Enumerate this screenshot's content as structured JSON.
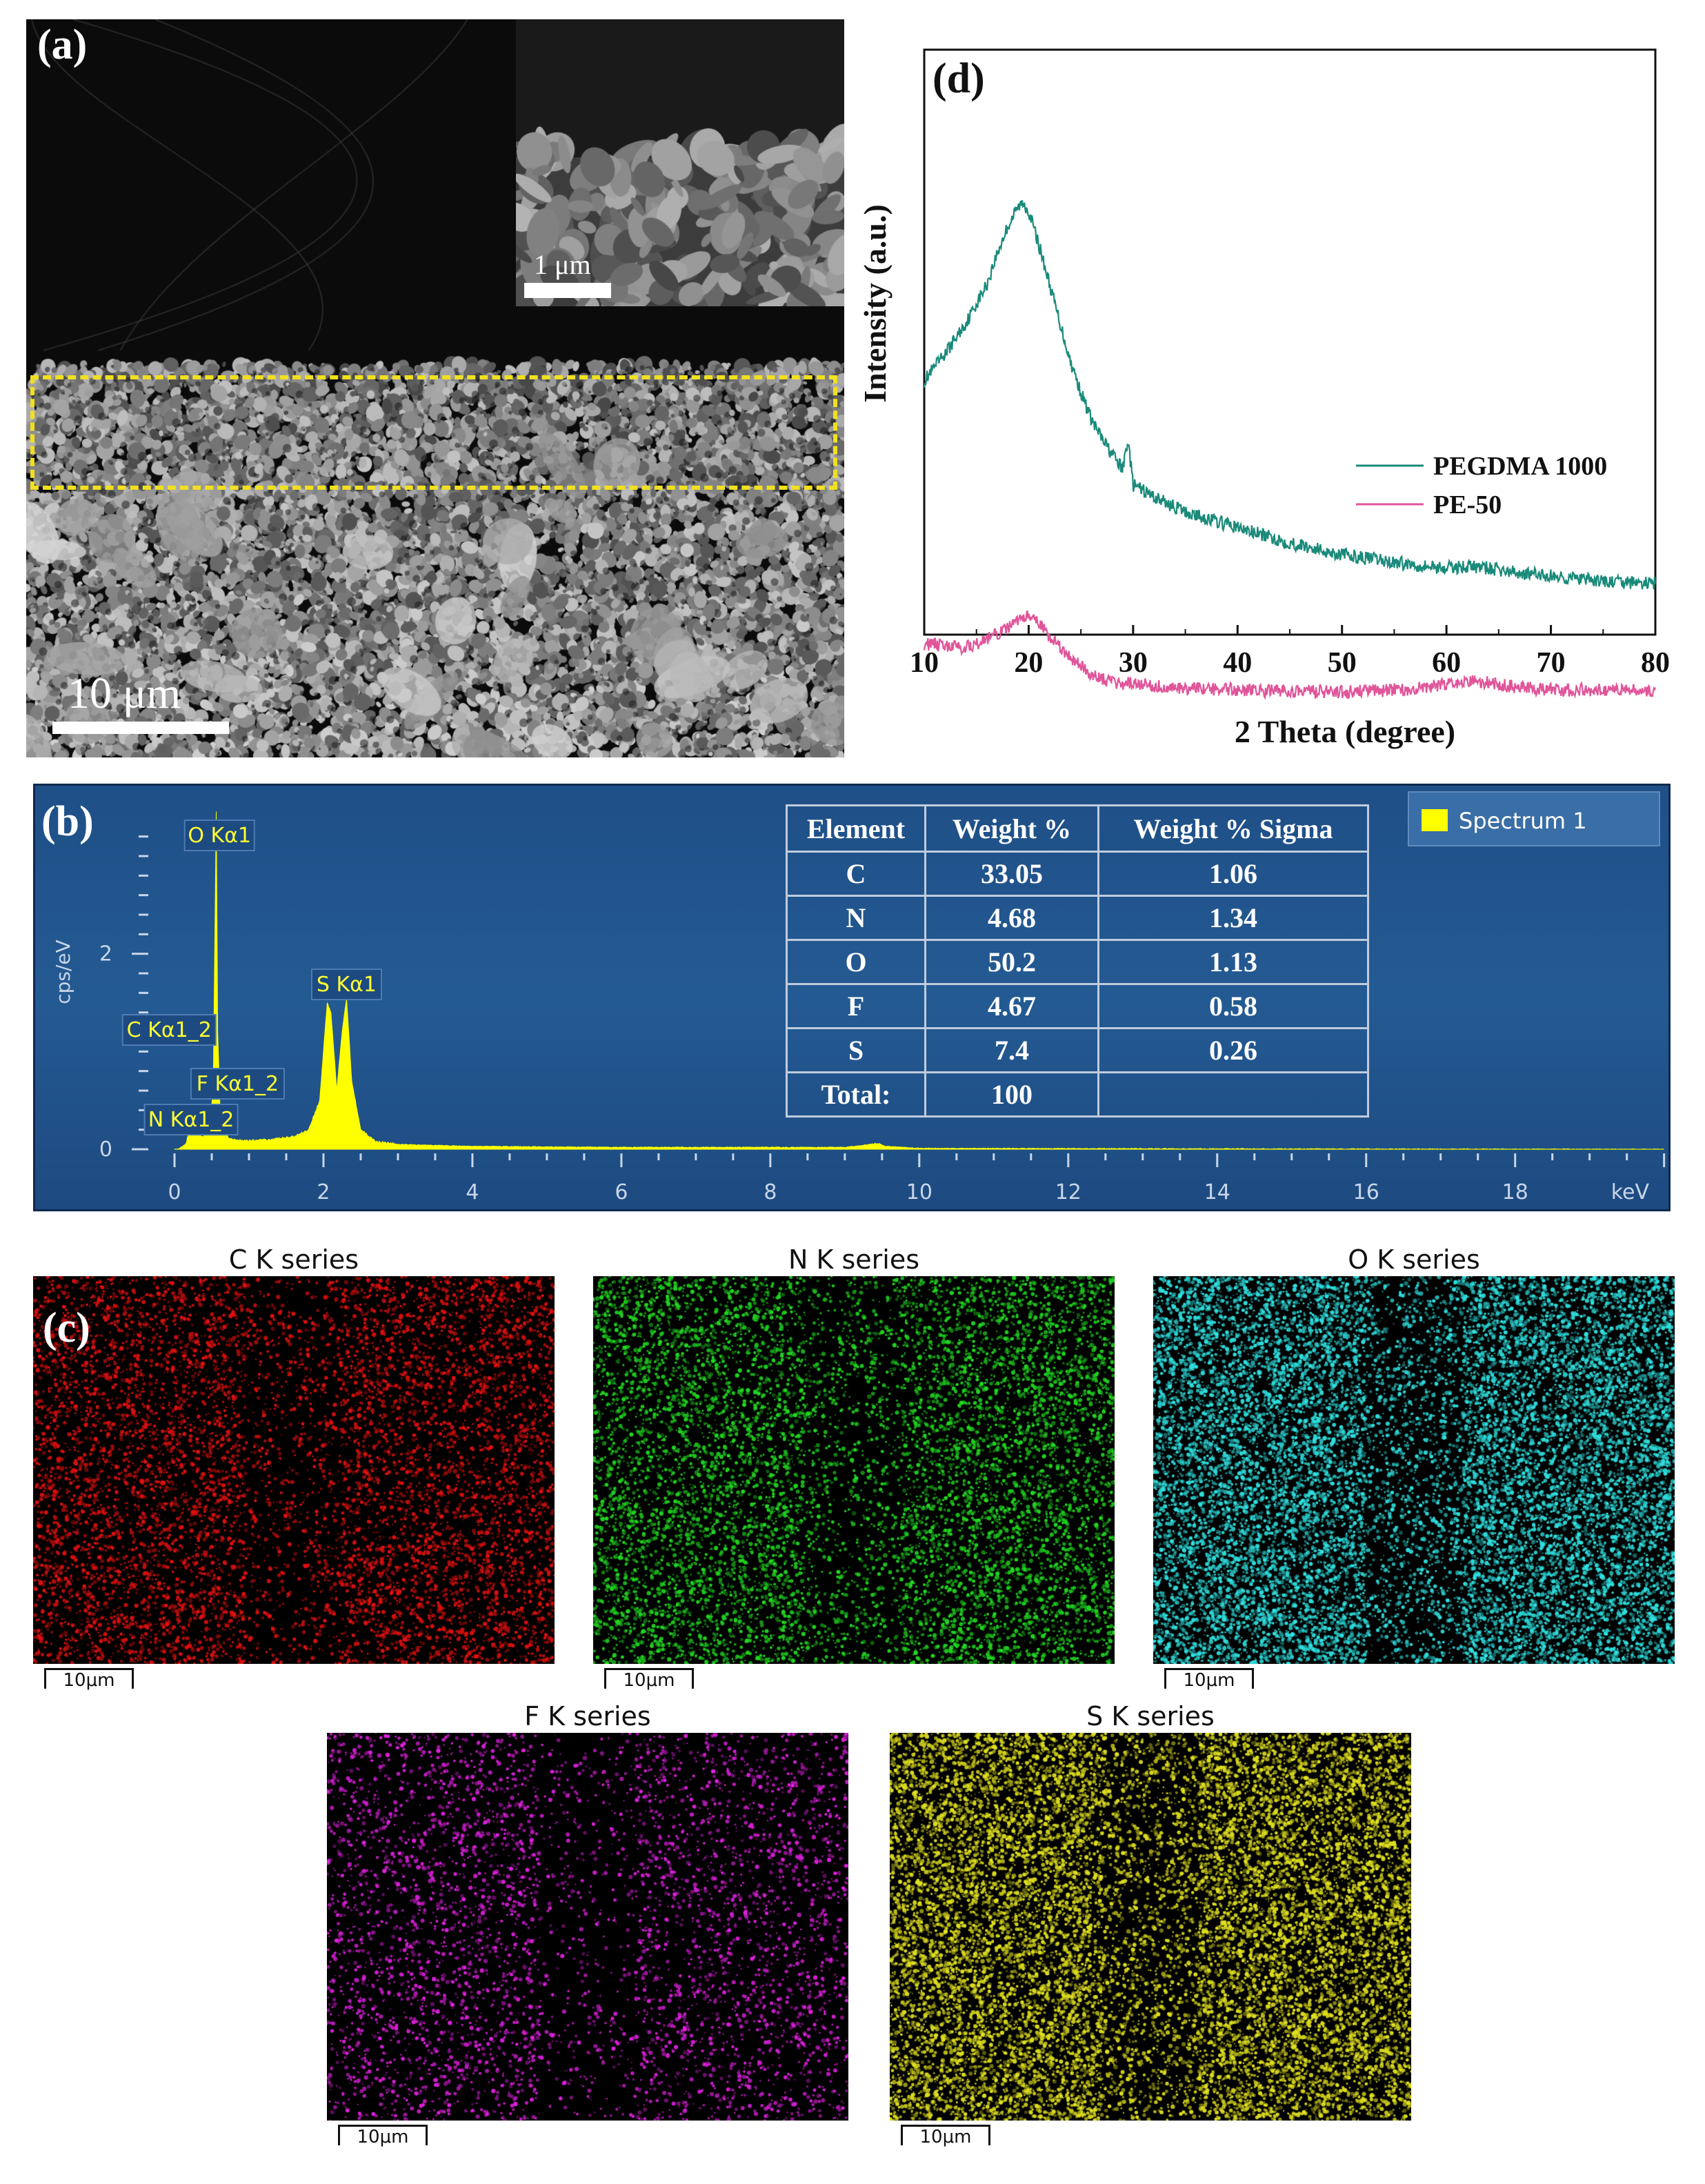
{
  "panel_a": {
    "label": "(a)",
    "main_scale": "10 μm",
    "inset_scale": "1 μm"
  },
  "panel_d": {
    "label": "(d)",
    "chart_data": {
      "type": "line",
      "xlabel": "2 Theta (degree)",
      "ylabel": "Intensity (a.u.)",
      "xlim": [
        10,
        80
      ],
      "xticks": [
        10,
        20,
        30,
        40,
        50,
        60,
        70,
        80
      ],
      "y_ticks_shown": false,
      "legend_position": "right",
      "series": [
        {
          "name": "PEGDMA 1000",
          "color": "#1a8a7a",
          "x": [
            10,
            12,
            14,
            16,
            17,
            18,
            19,
            19.5,
            20,
            21,
            22,
            23,
            24,
            25,
            26,
            27,
            28,
            29,
            29.5,
            30,
            32,
            35,
            40,
            45,
            50,
            55,
            60,
            62,
            64,
            66,
            68,
            70,
            75,
            80
          ],
          "y": [
            0.55,
            0.62,
            0.7,
            0.8,
            0.88,
            0.95,
            1.0,
            1.01,
            0.99,
            0.9,
            0.8,
            0.7,
            0.6,
            0.52,
            0.45,
            0.4,
            0.36,
            0.32,
            0.4,
            0.28,
            0.25,
            0.21,
            0.17,
            0.13,
            0.1,
            0.08,
            0.065,
            0.07,
            0.065,
            0.055,
            0.05,
            0.045,
            0.03,
            0.025
          ]
        },
        {
          "name": "PE-50",
          "color": "#e0559a",
          "x": [
            10,
            12,
            14,
            16,
            18,
            19,
            20,
            21,
            22,
            24,
            26,
            28,
            30,
            35,
            40,
            45,
            50,
            55,
            58,
            60,
            62,
            64,
            66,
            70,
            75,
            80
          ],
          "y": [
            0.12,
            0.115,
            0.11,
            0.13,
            0.16,
            0.18,
            0.19,
            0.17,
            0.14,
            0.08,
            0.04,
            0.02,
            0.015,
            0.005,
            0.0,
            -0.005,
            -0.005,
            0.0,
            0.005,
            0.015,
            0.025,
            0.02,
            0.01,
            0.0,
            0.0,
            0.0
          ]
        }
      ]
    }
  },
  "panel_b": {
    "label": "(b)",
    "chart_data": {
      "type": "area",
      "xlabel": "keV",
      "ylabel": "cps/eV",
      "xlim": [
        0,
        20
      ],
      "ylim": [
        0,
        3.6
      ],
      "xticks": [
        0,
        2,
        4,
        6,
        8,
        10,
        12,
        14,
        16,
        18
      ],
      "yticks": [
        0,
        2
      ],
      "series": [
        {
          "name": "Spectrum 1",
          "color": "#ffff00",
          "x": [
            0.05,
            0.15,
            0.22,
            0.28,
            0.33,
            0.38,
            0.42,
            0.47,
            0.52,
            0.56,
            0.58,
            0.62,
            0.68,
            0.72,
            0.8,
            1.0,
            1.3,
            1.6,
            1.8,
            1.95,
            2.05,
            2.1,
            2.18,
            2.25,
            2.31,
            2.38,
            2.5,
            2.7,
            3.0,
            4.0,
            6.0,
            9.0,
            9.35,
            9.45,
            9.55,
            10.0,
            14.0,
            20.0
          ],
          "y": [
            0.0,
            0.05,
            0.25,
            0.35,
            0.15,
            0.12,
            0.15,
            0.25,
            0.6,
            3.45,
            1.2,
            0.2,
            0.25,
            0.12,
            0.1,
            0.09,
            0.1,
            0.13,
            0.2,
            0.5,
            1.5,
            1.4,
            0.6,
            1.2,
            1.55,
            0.7,
            0.2,
            0.08,
            0.05,
            0.03,
            0.02,
            0.02,
            0.05,
            0.06,
            0.03,
            0.01,
            0.005,
            0.0
          ]
        }
      ],
      "peak_labels": [
        {
          "text": "O Kα1",
          "x": 0.53
        },
        {
          "text": "C Kα1_2",
          "x": 0.28
        },
        {
          "text": "F Kα1_2",
          "x": 0.68
        },
        {
          "text": "N Kα1_2",
          "x": 0.39
        },
        {
          "text": "S Kα1",
          "x": 2.31
        }
      ]
    },
    "legend": "Spectrum 1",
    "table": {
      "headers": [
        "Element",
        "Weight %",
        "Weight % Sigma"
      ],
      "rows": [
        [
          "C",
          "33.05",
          "1.06"
        ],
        [
          "N",
          "4.68",
          "1.34"
        ],
        [
          "O",
          "50.2",
          "1.13"
        ],
        [
          "F",
          "4.67",
          "0.58"
        ],
        [
          "S",
          "7.4",
          "0.26"
        ],
        [
          "Total:",
          "100",
          ""
        ]
      ]
    }
  },
  "panel_c": {
    "label": "(c)",
    "maps": [
      {
        "title": "C K series",
        "scale": "10μm",
        "color": "#e01010"
      },
      {
        "title": "N K series",
        "scale": "10μm",
        "color": "#22d822"
      },
      {
        "title": "O K series",
        "scale": "10μm",
        "color": "#30e0e0"
      },
      {
        "title": "F K series",
        "scale": "10μm",
        "color": "#e020e0"
      },
      {
        "title": "S K series",
        "scale": "10μm",
        "color": "#e0e020"
      }
    ]
  }
}
